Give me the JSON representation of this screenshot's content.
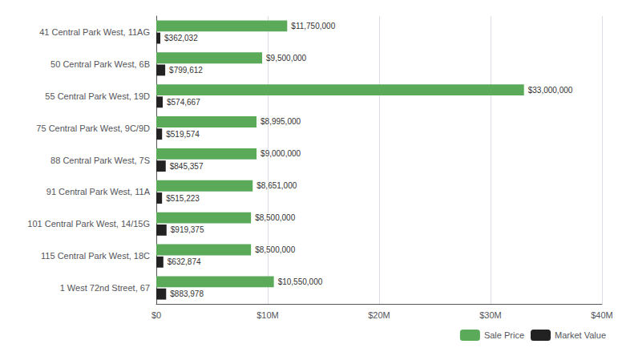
{
  "chart_data": {
    "type": "bar",
    "orientation": "horizontal",
    "categories": [
      "41 Central Park West, 11AG",
      "50 Central Park West, 6B",
      "55 Central Park West, 19D",
      "75 Central Park West, 9C/9D",
      "88 Central Park West, 7S",
      "91 Central Park West, 11A",
      "101 Central Park West, 14/15G",
      "115 Central Park West, 18C",
      "1 West 72nd Street, 67"
    ],
    "series": [
      {
        "name": "Sale Price",
        "color": "#5aaa5a",
        "values": [
          11750000,
          9500000,
          33000000,
          8995000,
          9000000,
          8651000,
          8500000,
          8500000,
          10550000
        ],
        "value_labels": [
          "$11,750,000",
          "$9,500,000",
          "$33,000,000",
          "$8,995,000",
          "$9,000,000",
          "$8,651,000",
          "$8,500,000",
          "$8,500,000",
          "$10,550,000"
        ]
      },
      {
        "name": "Market Value",
        "color": "#222222",
        "values": [
          362032,
          799612,
          574667,
          519574,
          845357,
          515223,
          919375,
          632874,
          883978
        ],
        "value_labels": [
          "$362,032",
          "$799,612",
          "$574,667",
          "$519,574",
          "$845,357",
          "$515,223",
          "$919,375",
          "$632,874",
          "$883,978"
        ]
      }
    ],
    "xlim": [
      0,
      40000000
    ],
    "xticks": [
      {
        "value": 0,
        "label": "$0"
      },
      {
        "value": 10000000,
        "label": "$10M"
      },
      {
        "value": 20000000,
        "label": "$20M"
      },
      {
        "value": 30000000,
        "label": "$30M"
      },
      {
        "value": 40000000,
        "label": "$40M"
      }
    ],
    "grid": true,
    "legend": "lower right",
    "data_labels": true
  }
}
